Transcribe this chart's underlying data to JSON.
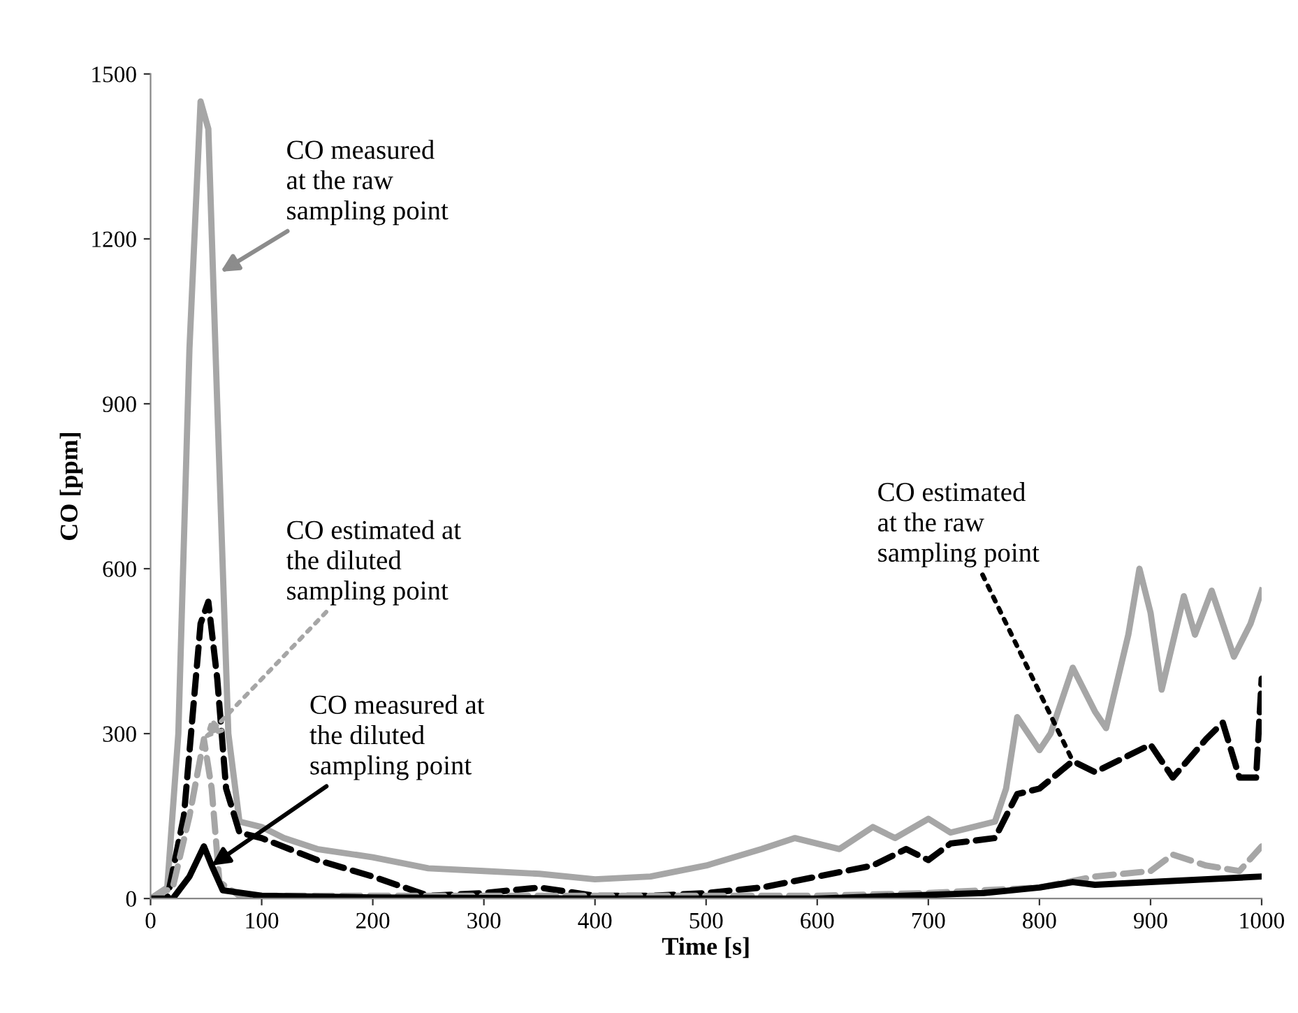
{
  "chart_data": {
    "type": "line",
    "xlabel": "Time [s]",
    "ylabel": "CO [ppm]",
    "xlim": [
      0,
      1000
    ],
    "xticks": [
      0,
      100,
      200,
      300,
      400,
      500,
      600,
      700,
      800,
      900,
      1000
    ],
    "ylim": [
      0,
      1500
    ],
    "yticks": [
      0,
      300,
      600,
      900,
      1200,
      1500
    ],
    "grid": false,
    "legend": false,
    "marker": "none",
    "series": [
      {
        "color": "#a6a6a6",
        "line_style": "solid",
        "x": [
          0,
          15,
          25,
          35,
          45,
          52,
          60,
          70,
          80,
          100,
          120,
          150,
          200,
          250,
          300,
          350,
          400,
          450,
          500,
          550,
          580,
          620,
          650,
          670,
          700,
          720,
          760,
          770,
          780,
          800,
          810,
          830,
          850,
          860,
          880,
          890,
          900,
          910,
          930,
          940,
          955,
          975,
          990,
          1000
        ],
        "values": [
          0,
          20,
          300,
          1000,
          1450,
          1400,
          900,
          300,
          140,
          130,
          110,
          90,
          75,
          55,
          50,
          45,
          35,
          40,
          60,
          90,
          110,
          90,
          130,
          110,
          145,
          120,
          140,
          200,
          330,
          270,
          300,
          420,
          340,
          310,
          480,
          600,
          520,
          380,
          550,
          480,
          560,
          440,
          500,
          560
        ]
      },
      {
        "color": "#000000",
        "line_style": "dashed",
        "x": [
          0,
          15,
          30,
          45,
          52,
          60,
          68,
          80,
          100,
          150,
          200,
          250,
          300,
          350,
          400,
          450,
          500,
          550,
          600,
          650,
          680,
          700,
          720,
          760,
          780,
          800,
          830,
          850,
          880,
          900,
          920,
          950,
          965,
          980,
          995,
          1000
        ],
        "values": [
          0,
          0,
          150,
          500,
          540,
          400,
          200,
          120,
          110,
          70,
          40,
          5,
          10,
          20,
          5,
          5,
          10,
          20,
          40,
          60,
          90,
          70,
          100,
          110,
          190,
          200,
          250,
          230,
          260,
          280,
          220,
          290,
          320,
          220,
          220,
          400
        ]
      },
      {
        "color": "#a6a6a6",
        "line_style": "dashed",
        "x": [
          0,
          20,
          35,
          48,
          55,
          62,
          80,
          200,
          600,
          700,
          750,
          800,
          850,
          900,
          920,
          950,
          980,
          1000
        ],
        "values": [
          0,
          20,
          150,
          290,
          200,
          30,
          5,
          5,
          5,
          10,
          15,
          20,
          40,
          50,
          80,
          60,
          50,
          95
        ]
      },
      {
        "color": "#000000",
        "line_style": "solid",
        "x": [
          0,
          20,
          35,
          48,
          55,
          65,
          100,
          200,
          400,
          600,
          750,
          800,
          830,
          850,
          900,
          1000
        ],
        "values": [
          0,
          0,
          40,
          95,
          60,
          15,
          5,
          2,
          0,
          0,
          10,
          20,
          30,
          25,
          30,
          40
        ]
      }
    ],
    "annotations": [
      {
        "text": "CO measured\nat the raw\nsampling point",
        "x": 63,
        "y": 1140
      },
      {
        "text": "CO estimated at\nthe diluted\nsampling point",
        "x": 48,
        "y": 290
      },
      {
        "text": "CO measured at\nthe diluted\nsampling point",
        "x": 55,
        "y": 60
      },
      {
        "text": "CO estimated\nat the raw\nsampling point",
        "x": 830,
        "y": 250
      }
    ]
  }
}
